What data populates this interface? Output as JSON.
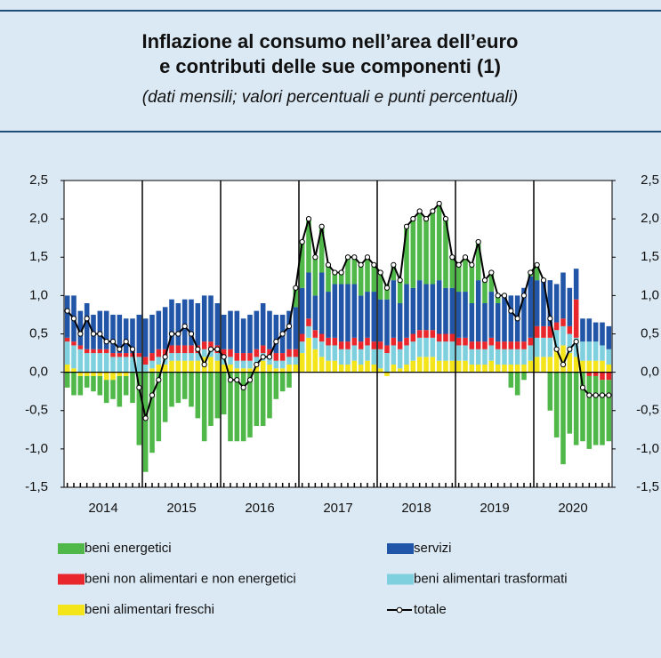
{
  "chart_data": {
    "type": "bar",
    "stacked": true,
    "title": [
      "Inflazione al consumo nell’area dell’euro",
      "e contributi delle sue componenti (1)"
    ],
    "subtitle": "(dati mensili; valori percentuali e punti percentuali)",
    "categories": [
      "2014",
      null,
      null,
      null,
      null,
      null,
      null,
      null,
      null,
      null,
      null,
      null,
      "2015",
      null,
      null,
      null,
      null,
      null,
      null,
      null,
      null,
      null,
      null,
      null,
      "2016",
      null,
      null,
      null,
      null,
      null,
      null,
      null,
      null,
      null,
      null,
      null,
      "2017",
      null,
      null,
      null,
      null,
      null,
      null,
      null,
      null,
      null,
      null,
      null,
      "2018",
      null,
      null,
      null,
      null,
      null,
      null,
      null,
      null,
      null,
      null,
      null,
      "2019",
      null,
      null,
      null,
      null,
      null,
      null,
      null,
      null,
      null,
      null,
      null,
      "2020",
      null,
      null,
      null,
      null,
      null,
      null,
      null,
      null,
      null,
      null,
      null
    ],
    "series": [
      {
        "name": "beni energetici",
        "color": "#4fb848",
        "values": [
          -0.2,
          -0.3,
          -0.25,
          -0.15,
          -0.2,
          -0.25,
          -0.3,
          -0.25,
          -0.4,
          -0.25,
          -0.4,
          -0.95,
          -1.3,
          -1.05,
          -0.9,
          -0.65,
          -0.45,
          -0.4,
          -0.35,
          -0.45,
          -0.6,
          -0.9,
          -0.7,
          -0.6,
          -0.55,
          -0.9,
          -0.9,
          -0.9,
          -0.85,
          -0.7,
          -0.7,
          -0.6,
          -0.35,
          -0.25,
          -0.2,
          0.25,
          0.6,
          0.7,
          0.5,
          0.6,
          0.35,
          0.15,
          0.15,
          0.35,
          0.35,
          0.4,
          0.45,
          0.35,
          0.35,
          0.2,
          0.2,
          0.3,
          0.75,
          0.9,
          0.9,
          0.85,
          0.95,
          1.0,
          0.9,
          0.4,
          0.35,
          0.45,
          0.5,
          0.5,
          0.3,
          0.25,
          0.1,
          0,
          -0.2,
          -0.3,
          -0.1,
          0.05,
          0.2,
          0,
          -0.5,
          -0.85,
          -1.2,
          -0.8,
          -0.95,
          -0.9,
          -0.95,
          -0.9,
          -0.85,
          -0.8
        ]
      },
      {
        "name": "servizi",
        "color": "#2155a8",
        "values": [
          0.55,
          0.6,
          0.45,
          0.6,
          0.45,
          0.5,
          0.5,
          0.5,
          0.5,
          0.45,
          0.45,
          0.5,
          0.5,
          0.5,
          0.5,
          0.55,
          0.6,
          0.55,
          0.6,
          0.6,
          0.55,
          0.6,
          0.6,
          0.55,
          0.45,
          0.5,
          0.55,
          0.45,
          0.5,
          0.5,
          0.55,
          0.5,
          0.5,
          0.5,
          0.5,
          0.55,
          0.6,
          0.6,
          0.45,
          0.8,
          0.6,
          0.7,
          0.75,
          0.75,
          0.7,
          0.6,
          0.6,
          0.65,
          0.55,
          0.6,
          0.75,
          0.5,
          0.7,
          0.6,
          0.65,
          0.6,
          0.6,
          0.7,
          0.6,
          0.6,
          0.6,
          0.6,
          0.5,
          0.8,
          0.5,
          0.6,
          0.5,
          0.6,
          0.6,
          0.6,
          0.7,
          0.8,
          0.6,
          0.6,
          0.6,
          0.5,
          0.6,
          0.5,
          0.4,
          0.3,
          0.3,
          0.25,
          0.3,
          0.3
        ]
      },
      {
        "name": "beni non alimentari e non energetici",
        "color": "#e8262b",
        "values": [
          0.05,
          0.05,
          0.05,
          0.05,
          0.05,
          0.05,
          0.05,
          0.05,
          0.05,
          0.05,
          0.05,
          0.05,
          0.1,
          0.1,
          0.1,
          0.1,
          0.1,
          0.1,
          0.1,
          0.1,
          0.1,
          0.1,
          0.1,
          0.1,
          0.1,
          0.1,
          0.1,
          0.1,
          0.1,
          0.1,
          0.1,
          0.1,
          0.1,
          0.1,
          0.1,
          0.1,
          0.1,
          0.1,
          0.1,
          0.1,
          0.1,
          0.1,
          0.1,
          0.1,
          0.1,
          0.1,
          0.1,
          0.1,
          0.1,
          0.1,
          0.1,
          0.1,
          0.1,
          0.1,
          0.1,
          0.1,
          0.1,
          0.1,
          0.1,
          0.1,
          0.1,
          0.1,
          0.1,
          0.1,
          0.1,
          0.1,
          0.1,
          0.1,
          0.1,
          0.1,
          0.1,
          0.1,
          0.15,
          0.15,
          0.15,
          0.1,
          0.1,
          0.1,
          0.5,
          0,
          -0.05,
          -0.05,
          -0.1,
          -0.1
        ]
      },
      {
        "name": "beni alimentari trasformati",
        "color": "#7fd0de",
        "values": [
          0.3,
          0.3,
          0.3,
          0.25,
          0.25,
          0.25,
          0.25,
          0.2,
          0.2,
          0.2,
          0.2,
          0.2,
          0.1,
          0.1,
          0.1,
          0.1,
          0.1,
          0.1,
          0.1,
          0.1,
          0.1,
          0.1,
          0.1,
          0.1,
          0.1,
          0.1,
          0.1,
          0.1,
          0.1,
          0.1,
          0.1,
          0.1,
          0.1,
          0.1,
          0.1,
          0.1,
          0.15,
          0.15,
          0.15,
          0.2,
          0.2,
          0.2,
          0.2,
          0.2,
          0.2,
          0.2,
          0.2,
          0.2,
          0.25,
          0.25,
          0.25,
          0.25,
          0.25,
          0.25,
          0.25,
          0.25,
          0.25,
          0.25,
          0.25,
          0.25,
          0.2,
          0.2,
          0.2,
          0.2,
          0.2,
          0.2,
          0.2,
          0.2,
          0.2,
          0.2,
          0.2,
          0.2,
          0.25,
          0.25,
          0.25,
          0.25,
          0.25,
          0.25,
          0.25,
          0.25,
          0.25,
          0.25,
          0.2,
          0.2
        ]
      },
      {
        "name": "beni alimentari freschi",
        "color": "#f4e51a",
        "values": [
          0.1,
          0.05,
          -0.05,
          -0.05,
          -0.05,
          -0.05,
          -0.1,
          -0.1,
          -0.05,
          -0.05,
          0,
          0,
          0,
          0.05,
          0.1,
          0.1,
          0.15,
          0.15,
          0.15,
          0.15,
          0.15,
          0.2,
          0.2,
          0.15,
          0.1,
          0.1,
          0.05,
          0.05,
          0.05,
          0.1,
          0.15,
          0.1,
          0.05,
          0.05,
          0.1,
          0.1,
          0.25,
          0.45,
          0.3,
          0.2,
          0.15,
          0.15,
          0.1,
          0.1,
          0.15,
          0.1,
          0.15,
          0.1,
          0.05,
          -0.05,
          0.1,
          0.05,
          0.1,
          0.15,
          0.2,
          0.2,
          0.2,
          0.15,
          0.15,
          0.15,
          0.15,
          0.15,
          0.1,
          0.1,
          0.1,
          0.15,
          0.1,
          0.1,
          0.1,
          0.1,
          0.1,
          0.15,
          0.2,
          0.2,
          0.2,
          0.3,
          0.35,
          0.25,
          0.2,
          0.15,
          0.15,
          0.15,
          0.15,
          0.1
        ]
      },
      {
        "name": "totale",
        "type": "line",
        "color": "#000000",
        "values": [
          0.8,
          0.7,
          0.5,
          0.7,
          0.5,
          0.5,
          0.4,
          0.4,
          0.3,
          0.4,
          0.3,
          -0.2,
          -0.6,
          -0.3,
          -0.1,
          0.2,
          0.5,
          0.5,
          0.6,
          0.5,
          0.3,
          0.1,
          0.3,
          0.3,
          0.2,
          -0.1,
          -0.1,
          -0.2,
          -0.1,
          0.1,
          0.2,
          0.2,
          0.4,
          0.5,
          0.6,
          1.1,
          1.7,
          2.0,
          1.5,
          1.9,
          1.4,
          1.3,
          1.3,
          1.5,
          1.5,
          1.4,
          1.5,
          1.4,
          1.3,
          1.1,
          1.4,
          1.2,
          1.9,
          2.0,
          2.1,
          2.0,
          2.1,
          2.2,
          2.0,
          1.5,
          1.4,
          1.5,
          1.4,
          1.7,
          1.2,
          1.3,
          1.0,
          1.0,
          0.8,
          0.7,
          1.0,
          1.3,
          1.4,
          1.2,
          0.7,
          0.3,
          0.1,
          0.3,
          0.4,
          -0.2,
          -0.3,
          -0.3,
          -0.3,
          -0.3
        ]
      }
    ],
    "ylim": [
      -1.5,
      2.5
    ],
    "yticks": [
      {
        "value": -1.5,
        "label": "-1,5"
      },
      {
        "value": -1.0,
        "label": "-1,0"
      },
      {
        "value": -0.5,
        "label": "-0,5"
      },
      {
        "value": 0,
        "label": "0,0"
      },
      {
        "value": 0.5,
        "label": "0,5"
      },
      {
        "value": 1.0,
        "label": "1,0"
      },
      {
        "value": 1.5,
        "label": "1,5"
      },
      {
        "value": 2.0,
        "label": "2,0"
      },
      {
        "value": 2.5,
        "label": "2,5"
      }
    ],
    "y2lim": [
      -1.5,
      2.5
    ],
    "y2ticks": [
      {
        "value": -1.5,
        "label": "-1,5"
      },
      {
        "value": -1.0,
        "label": "-1,0"
      },
      {
        "value": -0.5,
        "label": "-0,5"
      },
      {
        "value": 0,
        "label": "0,0"
      },
      {
        "value": 0.5,
        "label": "0,5"
      },
      {
        "value": 1.0,
        "label": "1,0"
      },
      {
        "value": 1.5,
        "label": "1,5"
      },
      {
        "value": 2.0,
        "label": "2,0"
      },
      {
        "value": 2.5,
        "label": "2,5"
      }
    ],
    "grid": false
  }
}
